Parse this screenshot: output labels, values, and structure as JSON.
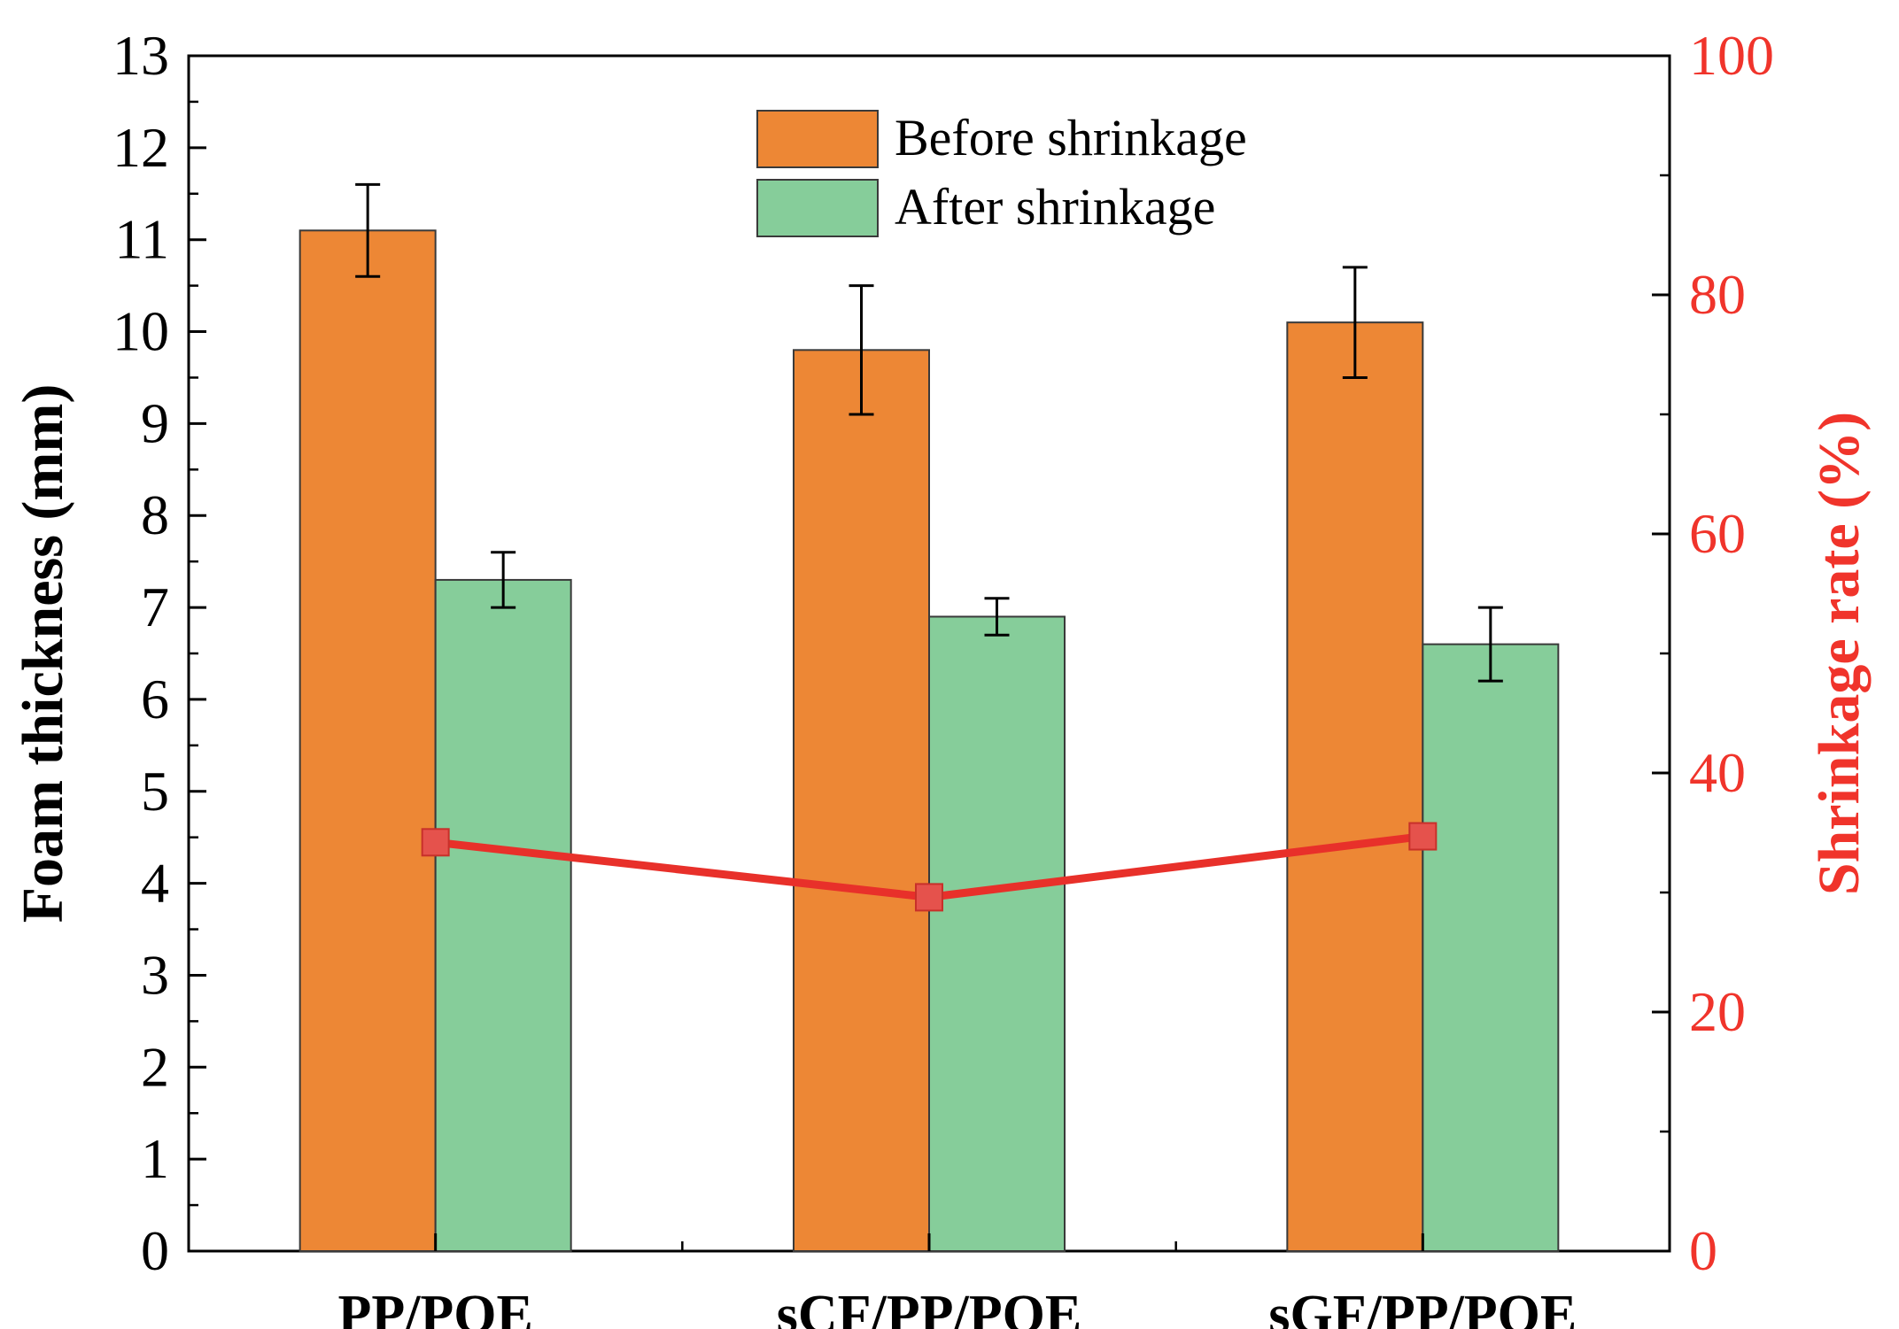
{
  "chart_data": {
    "type": "bar",
    "categories": [
      "PP/POE",
      "sCF/PP/POE",
      "sGF/PP/POE"
    ],
    "series": [
      {
        "name": "Before shrinkage",
        "axis": "left",
        "values": [
          11.1,
          9.8,
          10.1
        ],
        "errors": [
          0.5,
          0.7,
          0.6
        ],
        "color": "#ED8735"
      },
      {
        "name": "After shrinkage",
        "axis": "left",
        "values": [
          7.3,
          6.9,
          6.6
        ],
        "errors": [
          0.3,
          0.2,
          0.4
        ],
        "color": "#86CD9A"
      },
      {
        "name": "Shrinkage rate",
        "axis": "right",
        "kind": "line",
        "values": [
          34.2,
          29.6,
          34.7
        ],
        "color": "#E8302A",
        "marker_color": "#E5524C"
      }
    ],
    "ylabel": "Foam thickness (mm)",
    "ylabel_right": "Shrinkage rate (%)",
    "ylim": [
      0,
      13
    ],
    "ylim_right": [
      0,
      100
    ],
    "yticks": [
      0,
      1,
      2,
      3,
      4,
      5,
      6,
      7,
      8,
      9,
      10,
      11,
      12,
      13
    ],
    "yticks_right": [
      0,
      20,
      40,
      60,
      80,
      100
    ],
    "right_axis_color": "#F0342B",
    "legend_position": "top-center",
    "grid": false
  }
}
